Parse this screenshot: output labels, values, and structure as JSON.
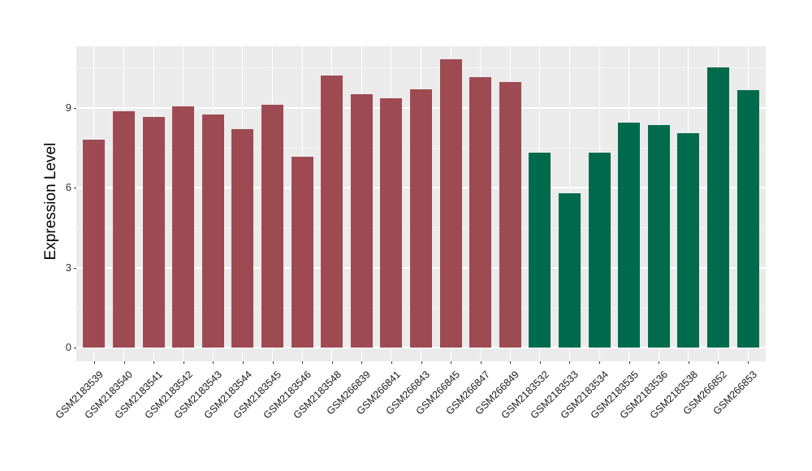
{
  "figure": {
    "background": "#FFFFFF"
  },
  "chart_data": {
    "type": "bar",
    "title": "",
    "xlabel": "",
    "ylabel": "Expression Level",
    "ylim": [
      0,
      11.3
    ],
    "yticks": [
      0,
      3,
      6,
      9
    ],
    "minor_yticks": [
      1.5,
      4.5,
      7.5,
      10.5
    ],
    "grid": "on",
    "legend": "none",
    "panel_background": "#EBEBEB",
    "grid_major_color": "#FFFFFF",
    "grid_minor_color": "#F5F5F5",
    "axis_text_color": "#303030",
    "categories": [
      "GSM2183539",
      "GSM2183540",
      "GSM2183541",
      "GSM2183542",
      "GSM2183543",
      "GSM2183544",
      "GSM2183545",
      "GSM2183546",
      "GSM2183548",
      "GSM266839",
      "GSM266841",
      "GSM266843",
      "GSM266845",
      "GSM266847",
      "GSM266849",
      "GSM2183532",
      "GSM2183533",
      "GSM2183534",
      "GSM2183535",
      "GSM2183536",
      "GSM2183538",
      "GSM266852",
      "GSM266853"
    ],
    "values": [
      7.8,
      8.85,
      8.65,
      9.05,
      8.75,
      8.2,
      9.1,
      7.15,
      10.2,
      9.5,
      9.35,
      9.7,
      10.8,
      10.15,
      9.95,
      7.3,
      5.8,
      7.3,
      8.45,
      8.35,
      8.05,
      10.5,
      9.65
    ],
    "groups": [
      "maroon",
      "maroon",
      "maroon",
      "maroon",
      "maroon",
      "maroon",
      "maroon",
      "maroon",
      "maroon",
      "maroon",
      "maroon",
      "maroon",
      "maroon",
      "maroon",
      "maroon",
      "green",
      "green",
      "green",
      "green",
      "green",
      "green",
      "green",
      "green"
    ],
    "colors": {
      "maroon": "#9E4A52",
      "green": "#006B4C"
    }
  }
}
